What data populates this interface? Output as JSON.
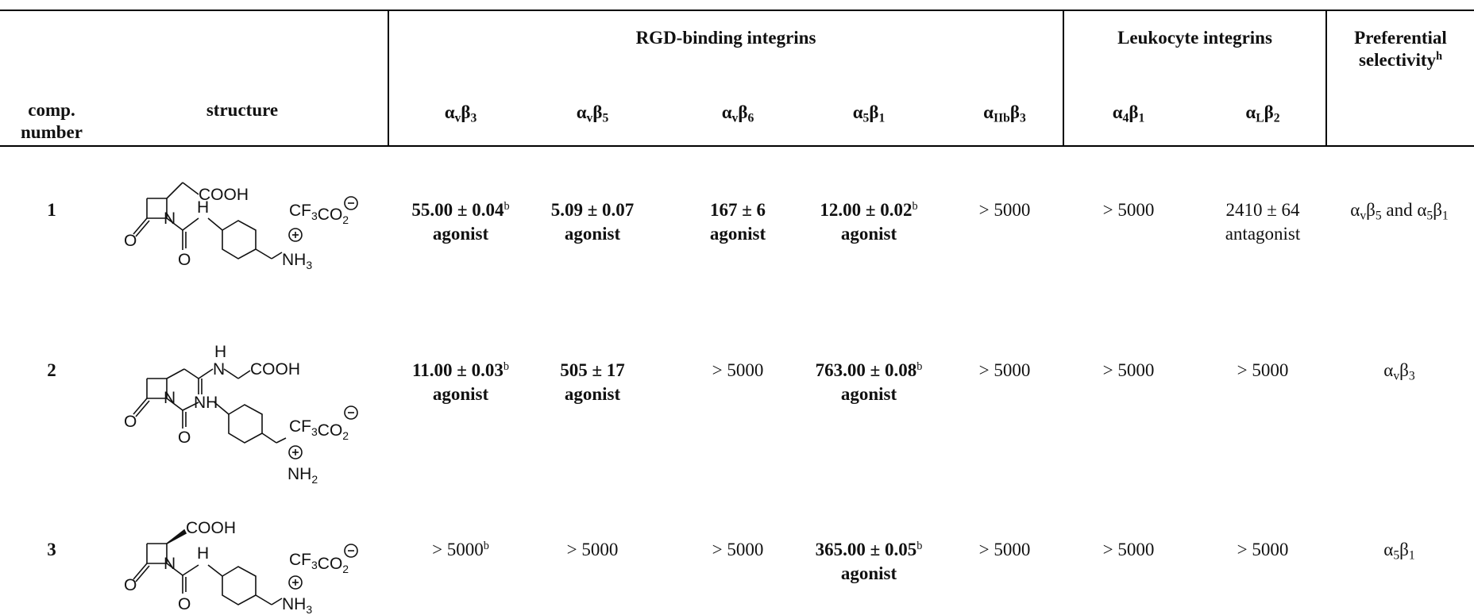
{
  "headers": {
    "group_rgd": "RGD-binding integrins",
    "group_leuko": "Leukocyte integrins",
    "preferential_line1": "Preferential",
    "preferential_line2": "selectivity",
    "preferential_sup": "h",
    "comp_line1": "comp.",
    "comp_line2": "number",
    "structure": "structure",
    "cols": [
      {
        "main": "α",
        "sub1": "v",
        "main2": "β",
        "sub2": "3"
      },
      {
        "main": "α",
        "sub1": "v",
        "main2": "β",
        "sub2": "5"
      },
      {
        "main": "α",
        "sub1": "v",
        "main2": "β",
        "sub2": "6"
      },
      {
        "main": "α",
        "sub1": "5",
        "main2": "β",
        "sub2": "1"
      },
      {
        "main": "α",
        "sub1": "IIb",
        "main2": "β",
        "sub2": "3"
      },
      {
        "main": "α",
        "sub1": "4",
        "main2": "β",
        "sub2": "1"
      },
      {
        "main": "α",
        "sub1": "L",
        "main2": "β",
        "sub2": "2"
      }
    ]
  },
  "rows": [
    {
      "number": "1",
      "structure_labels": {
        "cooh": "COOH",
        "h": "H",
        "n": "N",
        "o1": "O",
        "o2": "O",
        "anion": "CF3CO2",
        "amine": "NH3"
      },
      "cells": [
        {
          "value": "55.00 ± 0.04",
          "sup": "b",
          "note": "agonist",
          "bold": true
        },
        {
          "value": "5.09 ± 0.07",
          "sup": "",
          "note": "agonist",
          "bold": true
        },
        {
          "value": "167 ± 6",
          "sup": "",
          "note": "agonist",
          "bold": true
        },
        {
          "value": "12.00 ± 0.02",
          "sup": "b",
          "note": "agonist",
          "bold": true
        },
        {
          "value": "> 5000",
          "sup": "",
          "note": "",
          "bold": false
        },
        {
          "value": "> 5000",
          "sup": "",
          "note": "",
          "bold": false
        },
        {
          "value": "2410 ± 64",
          "sup": "",
          "note": "antagonist",
          "bold": false
        }
      ],
      "selectivity": "αvβ5 and α5β1"
    },
    {
      "number": "2",
      "structure_labels": {
        "cooh": "COOH",
        "h": "H",
        "n": "N",
        "nh": "NH",
        "o1": "O",
        "o2": "O",
        "o3": "O",
        "anion": "CF3CO2",
        "amine": "NH2"
      },
      "cells": [
        {
          "value": "11.00 ± 0.03",
          "sup": "b",
          "note": "agonist",
          "bold": true
        },
        {
          "value": "505 ± 17",
          "sup": "",
          "note": "agonist",
          "bold": true
        },
        {
          "value": "> 5000",
          "sup": "",
          "note": "",
          "bold": false
        },
        {
          "value": "763.00 ± 0.08",
          "sup": "b",
          "note": "agonist",
          "bold": true
        },
        {
          "value": "> 5000",
          "sup": "",
          "note": "",
          "bold": false
        },
        {
          "value": "> 5000",
          "sup": "",
          "note": "",
          "bold": false
        },
        {
          "value": "> 5000",
          "sup": "",
          "note": "",
          "bold": false
        }
      ],
      "selectivity": "αvβ3"
    },
    {
      "number": "3",
      "structure_labels": {
        "cooh": "COOH",
        "h": "H",
        "n": "N",
        "o1": "O",
        "o2": "O",
        "anion": "CF3CO2",
        "amine": "NH3"
      },
      "cells": [
        {
          "value": "> 5000",
          "sup": "b",
          "note": "",
          "bold": false
        },
        {
          "value": "> 5000",
          "sup": "",
          "note": "",
          "bold": false
        },
        {
          "value": "> 5000",
          "sup": "",
          "note": "",
          "bold": false
        },
        {
          "value": "365.00 ± 0.05",
          "sup": "b",
          "note": "agonist",
          "bold": true
        },
        {
          "value": "> 5000",
          "sup": "",
          "note": "",
          "bold": false
        },
        {
          "value": "> 5000",
          "sup": "",
          "note": "",
          "bold": false
        },
        {
          "value": "> 5000",
          "sup": "",
          "note": "",
          "bold": false
        }
      ],
      "selectivity": "α5β1"
    }
  ]
}
